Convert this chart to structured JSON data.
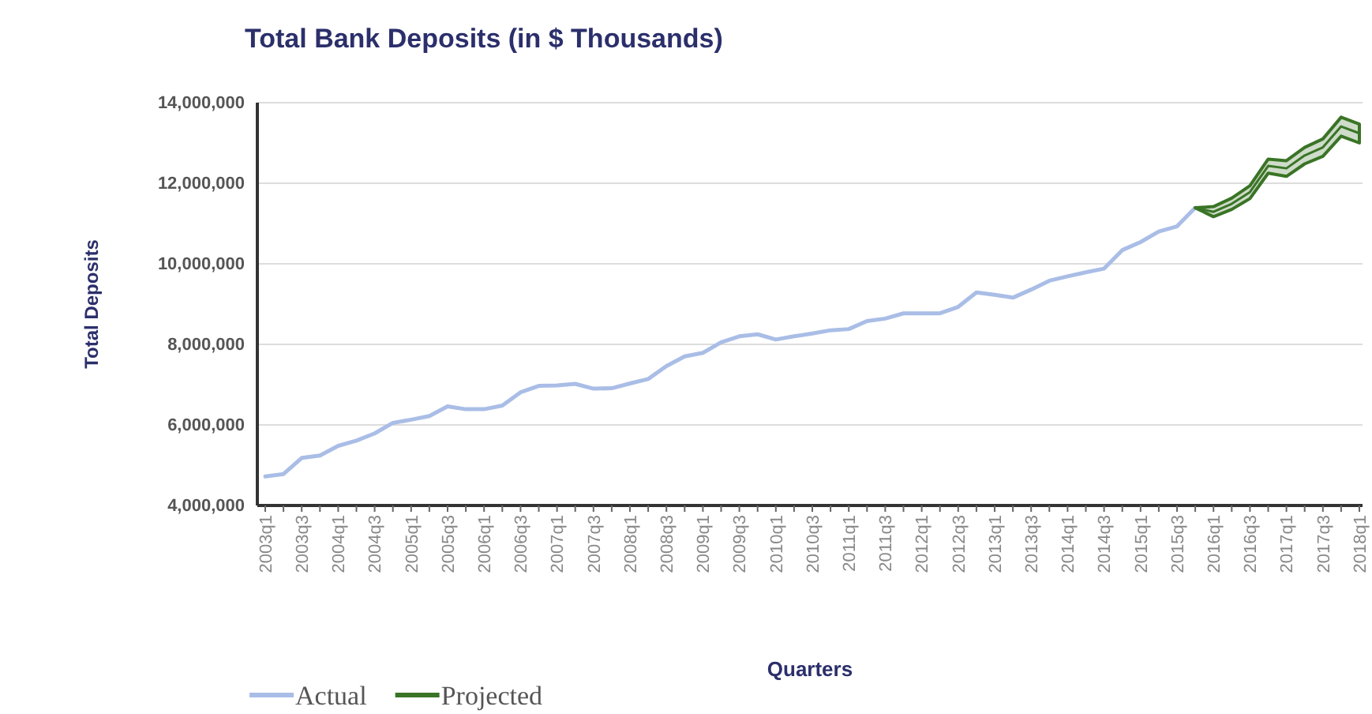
{
  "chart_data": {
    "type": "line",
    "title": "Total Bank Deposits (in $ Thousands)",
    "xlabel": "Quarters",
    "ylabel": "Total Deposits",
    "categories": [
      "2003q1",
      null,
      "2003q3",
      null,
      "2004q1",
      null,
      "2004q3",
      null,
      "2005q1",
      null,
      "2005q3",
      null,
      "2006q1",
      null,
      "2006q3",
      null,
      "2007q1",
      null,
      "2007q3",
      null,
      "2008q1",
      null,
      "2008q3",
      null,
      "2009q1",
      null,
      "2009q3",
      null,
      "2010q1",
      null,
      "2010q3",
      null,
      "2011q1",
      null,
      "2011q3",
      null,
      "2012q1",
      null,
      "2012q3",
      null,
      "2013q1",
      null,
      "2013q3",
      null,
      "2014q1",
      null,
      "2014q3",
      null,
      "2015q1",
      null,
      "2015q3",
      null,
      "2016q1",
      null,
      "2016q3",
      null,
      "2017q1",
      null,
      "2017q3",
      null,
      "2018q1"
    ],
    "series": [
      {
        "name": "Actual",
        "color": "#a9bde6",
        "values": [
          4720000,
          4780000,
          5180000,
          5240000,
          5480000,
          5610000,
          5790000,
          6050000,
          6130000,
          6220000,
          6460000,
          6390000,
          6390000,
          6480000,
          6810000,
          6970000,
          6980000,
          7020000,
          6900000,
          6910000,
          7030000,
          7140000,
          7460000,
          7700000,
          7790000,
          8050000,
          8200000,
          8250000,
          8120000,
          8200000,
          8270000,
          8350000,
          8380000,
          8580000,
          8640000,
          8770000,
          8770000,
          8770000,
          8930000,
          9290000,
          9230000,
          9160000,
          9360000,
          9580000,
          9690000,
          9790000,
          9880000,
          10340000,
          10540000,
          10800000,
          10930000,
          11390000,
          null,
          null,
          null,
          null,
          null,
          null,
          null,
          null,
          null
        ]
      },
      {
        "name": "Projected",
        "color": "#3a7426",
        "values": [
          null,
          null,
          null,
          null,
          null,
          null,
          null,
          null,
          null,
          null,
          null,
          null,
          null,
          null,
          null,
          null,
          null,
          null,
          null,
          null,
          null,
          null,
          null,
          null,
          null,
          null,
          null,
          null,
          null,
          null,
          null,
          null,
          null,
          null,
          null,
          null,
          null,
          null,
          null,
          null,
          null,
          null,
          null,
          null,
          null,
          null,
          null,
          null,
          null,
          null,
          null,
          11390000,
          11290000,
          11490000,
          11780000,
          12430000,
          12370000,
          12690000,
          12890000,
          13410000,
          13240000
        ],
        "lower": [
          null,
          null,
          null,
          null,
          null,
          null,
          null,
          null,
          null,
          null,
          null,
          null,
          null,
          null,
          null,
          null,
          null,
          null,
          null,
          null,
          null,
          null,
          null,
          null,
          null,
          null,
          null,
          null,
          null,
          null,
          null,
          null,
          null,
          null,
          null,
          null,
          null,
          null,
          null,
          null,
          null,
          null,
          null,
          null,
          null,
          null,
          null,
          null,
          null,
          null,
          null,
          11390000,
          11170000,
          11350000,
          11620000,
          12250000,
          12170000,
          12480000,
          12670000,
          13170000,
          13000000
        ],
        "upper": [
          null,
          null,
          null,
          null,
          null,
          null,
          null,
          null,
          null,
          null,
          null,
          null,
          null,
          null,
          null,
          null,
          null,
          null,
          null,
          null,
          null,
          null,
          null,
          null,
          null,
          null,
          null,
          null,
          null,
          null,
          null,
          null,
          null,
          null,
          null,
          null,
          null,
          null,
          null,
          null,
          null,
          null,
          null,
          null,
          null,
          null,
          null,
          null,
          null,
          null,
          null,
          11390000,
          11420000,
          11630000,
          11940000,
          12600000,
          12560000,
          12890000,
          13100000,
          13640000,
          13470000
        ]
      }
    ],
    "ylim": [
      4000000,
      14000000
    ],
    "yticks": [
      {
        "value": 4000000,
        "label": "4,000,000"
      },
      {
        "value": 6000000,
        "label": "6,000,000"
      },
      {
        "value": 8000000,
        "label": "8,000,000"
      },
      {
        "value": 10000000,
        "label": "10,000,000"
      },
      {
        "value": 12000000,
        "label": "12,000,000"
      },
      {
        "value": 14000000,
        "label": "14,000,000"
      }
    ],
    "grid": "y",
    "legend": "bottom left"
  }
}
